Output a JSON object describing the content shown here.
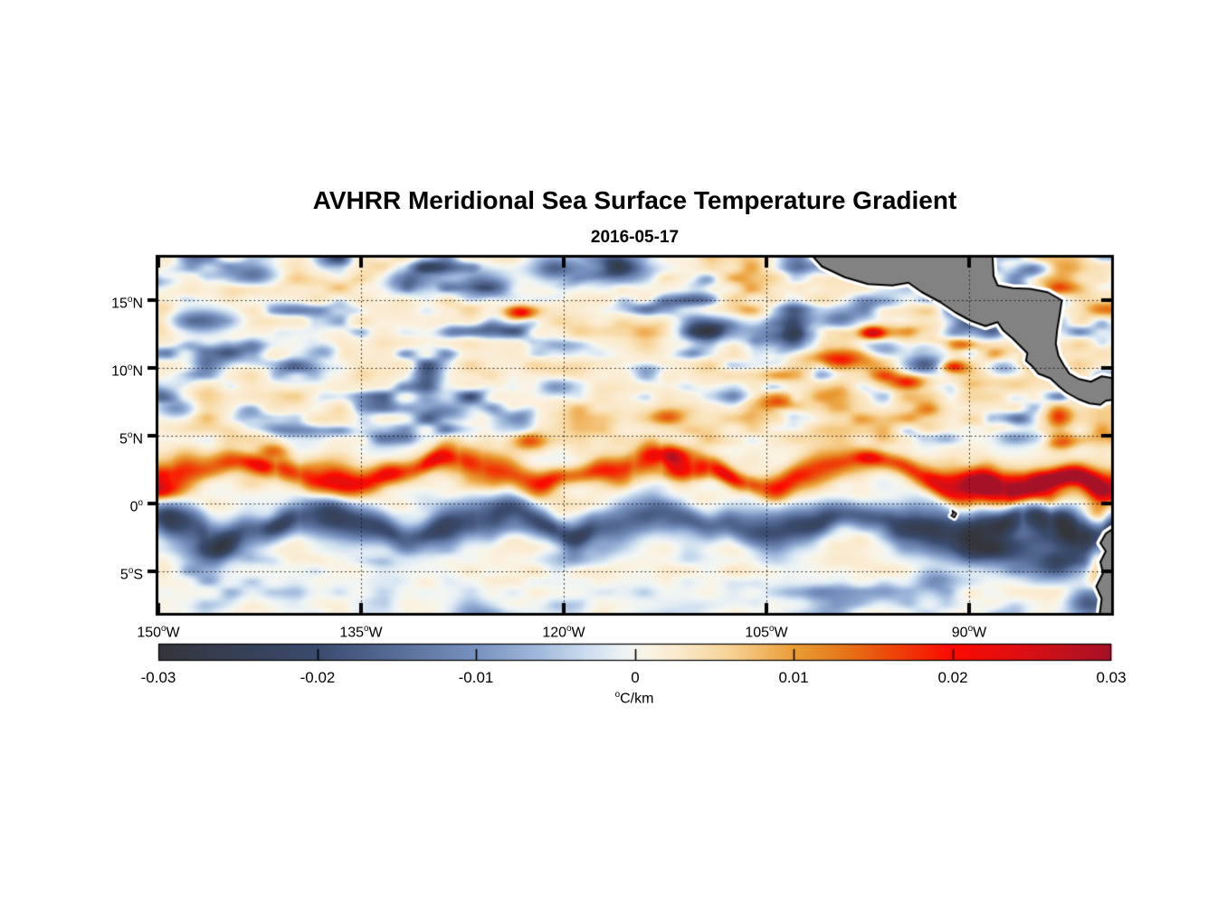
{
  "figure": {
    "title": "AVHRR Meridional Sea Surface Temperature Gradient",
    "date": "2016-05-17",
    "background": "#ffffff"
  },
  "chart_data": {
    "type": "heatmap",
    "title": "AVHRR Meridional Sea Surface Temperature Gradient",
    "subtitle": "2016-05-17",
    "variable": "meridional sea surface temperature gradient",
    "units_parts": {
      "pre": "",
      "sup": "o",
      "post": "C/km"
    },
    "x_axis": {
      "range_lon": [
        -150,
        -79.5
      ],
      "ticks": [
        {
          "value": -150,
          "pre": "150",
          "sup": "o",
          "post": "W"
        },
        {
          "value": -135,
          "pre": "135",
          "sup": "o",
          "post": "W"
        },
        {
          "value": -120,
          "pre": "120",
          "sup": "o",
          "post": "W"
        },
        {
          "value": -105,
          "pre": "105",
          "sup": "o",
          "post": "W"
        },
        {
          "value": -90,
          "pre": "90",
          "sup": "o",
          "post": "W"
        }
      ]
    },
    "y_axis": {
      "range_lat": [
        -8.05,
        18.15
      ],
      "ticks": [
        {
          "value": 15,
          "pre": "15",
          "sup": "o",
          "post": "N"
        },
        {
          "value": 10,
          "pre": "10",
          "sup": "o",
          "post": "N"
        },
        {
          "value": 5,
          "pre": "5",
          "sup": "o",
          "post": "N"
        },
        {
          "value": 0,
          "pre": "0",
          "sup": "o",
          "post": ""
        },
        {
          "value": -5,
          "pre": "5",
          "sup": "o",
          "post": "S"
        }
      ]
    },
    "grid": {
      "lon_lines": [
        -135,
        -120,
        -105,
        -90
      ],
      "lat_lines": [
        15,
        10,
        5,
        0,
        -5
      ],
      "style": "dotted"
    },
    "colorbar": {
      "range": [
        -0.03,
        0.03
      ],
      "tick_values": [
        -0.03,
        -0.02,
        -0.01,
        0,
        0.01,
        0.02,
        0.03
      ],
      "tick_labels": [
        "-0.03",
        "-0.02",
        "-0.01",
        "0",
        "0.01",
        "0.02",
        "0.03"
      ],
      "orientation": "horizontal"
    },
    "colormap": [
      [
        0.0,
        52,
        54,
        60
      ],
      [
        0.1,
        55,
        66,
        90
      ],
      [
        0.1667,
        58,
        75,
        110
      ],
      [
        0.25,
        88,
        110,
        152
      ],
      [
        0.3333,
        120,
        146,
        192
      ],
      [
        0.4,
        162,
        186,
        220
      ],
      [
        0.45,
        205,
        222,
        240
      ],
      [
        0.485,
        235,
        242,
        245
      ],
      [
        0.5,
        244,
        246,
        240
      ],
      [
        0.515,
        250,
        243,
        228
      ],
      [
        0.55,
        250,
        232,
        200
      ],
      [
        0.6,
        247,
        211,
        150
      ],
      [
        0.6667,
        235,
        158,
        55
      ],
      [
        0.72,
        230,
        118,
        25
      ],
      [
        0.77,
        238,
        70,
        10
      ],
      [
        0.8333,
        252,
        10,
        0
      ],
      [
        0.9,
        225,
        15,
        18
      ],
      [
        1.0,
        165,
        18,
        40
      ]
    ],
    "land": {
      "color": "#828282",
      "outline": "#000000",
      "nodata_fringe": "#ffffff",
      "polygons": {
        "central_america": [
          [
            -101.9,
            18.6
          ],
          [
            -100.9,
            17.5
          ],
          [
            -99.2,
            16.7
          ],
          [
            -97.5,
            16.2
          ],
          [
            -95.7,
            16.1
          ],
          [
            -94.5,
            16.3
          ],
          [
            -93.5,
            15.6
          ],
          [
            -92.2,
            14.9
          ],
          [
            -91.0,
            14.1
          ],
          [
            -89.9,
            13.5
          ],
          [
            -88.8,
            13.1
          ],
          [
            -87.9,
            13.4
          ],
          [
            -87.5,
            12.8
          ],
          [
            -86.8,
            12.2
          ],
          [
            -86.2,
            11.6
          ],
          [
            -85.7,
            11.1
          ],
          [
            -85.8,
            10.55
          ],
          [
            -85.3,
            10.1
          ],
          [
            -84.9,
            9.6
          ],
          [
            -84.0,
            9.25
          ],
          [
            -83.3,
            8.6
          ],
          [
            -82.8,
            8.2
          ],
          [
            -81.9,
            7.7
          ],
          [
            -81.1,
            7.4
          ],
          [
            -80.3,
            7.3
          ],
          [
            -79.9,
            7.6
          ],
          [
            -79.0,
            7.7
          ],
          [
            -79.0,
            9.2
          ],
          [
            -80.2,
            9.4
          ],
          [
            -81.0,
            9.0
          ],
          [
            -81.9,
            9.2
          ],
          [
            -82.6,
            9.6
          ],
          [
            -83.0,
            10.2
          ],
          [
            -83.4,
            10.9
          ],
          [
            -83.6,
            11.8
          ],
          [
            -83.5,
            12.8
          ],
          [
            -83.3,
            14.0
          ],
          [
            -83.15,
            15.0
          ],
          [
            -84.2,
            15.6
          ],
          [
            -85.5,
            15.85
          ],
          [
            -86.8,
            15.9
          ],
          [
            -87.9,
            16.1
          ],
          [
            -88.2,
            16.8
          ],
          [
            -88.3,
            18.6
          ]
        ],
        "south_america": [
          [
            -79.0,
            -1.6
          ],
          [
            -79.9,
            -2.2
          ],
          [
            -80.3,
            -2.9
          ],
          [
            -79.9,
            -3.5
          ],
          [
            -80.3,
            -4.3
          ],
          [
            -80.1,
            -5.1
          ],
          [
            -80.6,
            -6.1
          ],
          [
            -80.2,
            -7.0
          ],
          [
            -80.4,
            -8.5
          ],
          [
            -79.0,
            -8.5
          ]
        ],
        "galapagos": [
          [
            -91.25,
            -0.5
          ],
          [
            -90.95,
            -0.72
          ],
          [
            -91.1,
            -1.02
          ],
          [
            -91.35,
            -0.88
          ],
          [
            -91.2,
            -0.72
          ]
        ]
      }
    },
    "field": {
      "noise": {
        "seed": 7,
        "octave1": [
          0.3,
          0.62
        ],
        "octave2": [
          0.62,
          1.25
        ],
        "mix": [
          0.62,
          0.38
        ]
      },
      "red_front": {
        "lat_center": 2.35,
        "wave_amp": 0.9,
        "wave_len_deg": 15.5,
        "wave_phase": -0.85,
        "center_jitter": 0.55,
        "width": 1.0,
        "width_var": 0.3,
        "amp": 0.019,
        "east_dip_start": -95,
        "east_dip_rate": 0.1,
        "east_boost": 0.5
      },
      "blue_band": {
        "lat_center": -1.45,
        "wave_amp": 0.8,
        "wave_len_deg": 13.2,
        "wave_phase": 2.3,
        "center_jitter": 0.5,
        "width": 1.25,
        "width_var": 0.3,
        "amp": 0.021,
        "east_broad_amp": 0.013,
        "east_broad_lat": -2.8,
        "east_broad_width": 1.7
      },
      "blobs": [
        [
          -146.8,
          13.5,
          2.4,
          0.9,
          -0.017
        ],
        [
          -143.0,
          16.9,
          2.0,
          0.9,
          -0.016
        ],
        [
          -148.8,
          7.0,
          1.4,
          0.7,
          -0.012
        ],
        [
          -137.6,
          11.2,
          1.3,
          0.6,
          -0.011
        ],
        [
          -131.5,
          16.4,
          2.2,
          0.9,
          -0.015
        ],
        [
          -125.6,
          16.1,
          2.4,
          1.1,
          -0.019
        ],
        [
          -120.8,
          17.4,
          2.2,
          0.9,
          -0.019
        ],
        [
          -115.8,
          17.1,
          2.6,
          1.0,
          -0.017
        ],
        [
          -109.0,
          12.9,
          2.2,
          0.9,
          -0.016
        ],
        [
          -103.6,
          12.4,
          2.6,
          1.0,
          -0.019
        ],
        [
          -99.6,
          13.6,
          1.6,
          0.7,
          -0.015
        ],
        [
          -96.4,
          11.4,
          1.4,
          0.7,
          -0.017
        ],
        [
          -93.2,
          10.2,
          1.7,
          0.8,
          -0.021
        ],
        [
          -87.4,
          10.1,
          1.5,
          0.6,
          -0.018
        ],
        [
          -85.6,
          17.2,
          1.6,
          0.6,
          -0.015
        ],
        [
          -120.6,
          8.6,
          1.7,
          0.7,
          -0.012
        ],
        [
          -128.4,
          6.7,
          1.5,
          0.7,
          -0.011
        ],
        [
          -123.3,
          14.1,
          1.1,
          0.5,
          0.021
        ],
        [
          -97.2,
          12.6,
          0.9,
          0.45,
          0.023
        ],
        [
          -99.8,
          10.7,
          2.2,
          0.7,
          0.015
        ],
        [
          -90.6,
          11.8,
          1.4,
          0.5,
          0.016
        ],
        [
          -94.6,
          9.0,
          1.3,
          0.6,
          0.017
        ],
        [
          -91.3,
          10.1,
          1.1,
          0.5,
          0.015
        ],
        [
          -104.2,
          7.4,
          1.6,
          0.7,
          0.013
        ],
        [
          -112.3,
          6.4,
          1.4,
          0.6,
          0.011
        ],
        [
          -87.2,
          6.1,
          1.3,
          0.6,
          0.013
        ],
        [
          -83.2,
          4.6,
          1.1,
          0.6,
          0.015
        ],
        [
          -141.5,
          3.9,
          1.2,
          0.6,
          0.012
        ],
        [
          -122.6,
          4.6,
          1.3,
          0.7,
          0.014
        ],
        [
          -112.0,
          3.6,
          1.4,
          0.6,
          0.012
        ],
        [
          -97.5,
          3.4,
          1.1,
          0.5,
          0.01
        ],
        [
          -149.6,
          0.9,
          1.5,
          0.8,
          0.016
        ],
        [
          -90.2,
          1.7,
          3.2,
          0.9,
          0.014
        ],
        [
          -84.6,
          0.6,
          1.8,
          1.0,
          0.018
        ],
        [
          -80.6,
          -1.0,
          1.0,
          1.6,
          0.02
        ],
        [
          -80.6,
          -4.8,
          0.7,
          1.8,
          0.015
        ],
        [
          -88.2,
          -3.3,
          2.6,
          1.1,
          -0.015
        ],
        [
          -83.8,
          -4.6,
          2.2,
          1.0,
          -0.014
        ],
        [
          -80.8,
          -7.4,
          1.8,
          1.0,
          -0.019
        ],
        [
          -92.3,
          -5.6,
          1.6,
          0.8,
          -0.01
        ],
        [
          -145.2,
          -3.4,
          2.2,
          0.8,
          -0.009
        ],
        [
          -119.8,
          -4.1,
          2.0,
          0.7,
          -0.008
        ]
      ]
    }
  }
}
